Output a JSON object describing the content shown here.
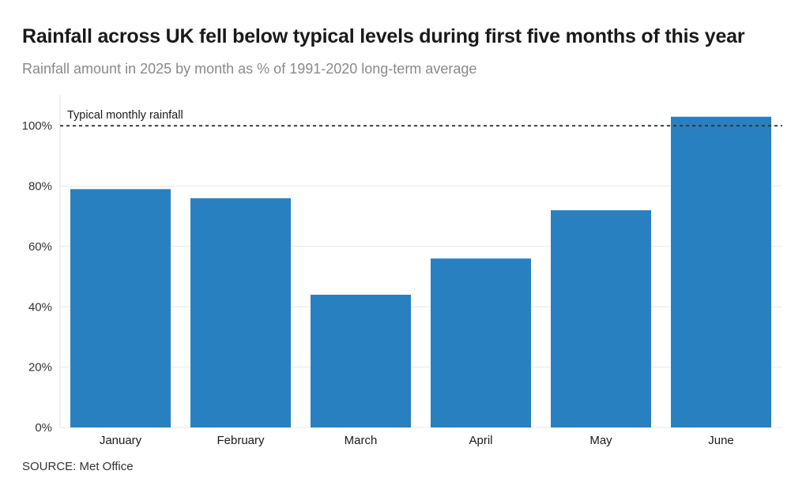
{
  "header": {
    "title": "Rainfall across UK fell below typical levels during first five months of this year",
    "subtitle": "Rainfall amount in 2025 by month as % of 1991-2020 long-term average"
  },
  "footer": {
    "source": "SOURCE: Met Office"
  },
  "chart_data": {
    "type": "bar",
    "categories": [
      "January",
      "February",
      "March",
      "April",
      "May",
      "June"
    ],
    "values": [
      79,
      76,
      44,
      56,
      72,
      103
    ],
    "ylim": [
      0,
      110
    ],
    "yticks": [
      0,
      20,
      40,
      60,
      80,
      100
    ],
    "ytick_labels": [
      "0%",
      "20%",
      "40%",
      "60%",
      "80%",
      "100%"
    ],
    "grid": true,
    "reference_line": {
      "value": 100,
      "label": "Typical monthly rainfall",
      "style": "dashed"
    },
    "colors": {
      "bar": "#2980c1",
      "grid": "#e8e8e8",
      "reference": "#333333"
    }
  }
}
